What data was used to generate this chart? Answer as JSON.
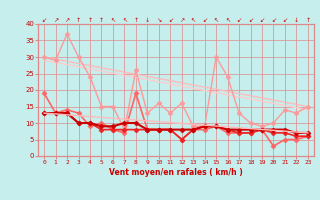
{
  "xlabel": "Vent moyen/en rafales ( km/h )",
  "bg_color": "#c5eeed",
  "grid_color": "#e08888",
  "xlim": [
    -0.5,
    23.5
  ],
  "ylim": [
    0,
    40
  ],
  "yticks": [
    0,
    5,
    10,
    15,
    20,
    25,
    30,
    35,
    40
  ],
  "xticks": [
    0,
    1,
    2,
    3,
    4,
    5,
    6,
    7,
    8,
    9,
    10,
    11,
    12,
    13,
    14,
    15,
    16,
    17,
    18,
    19,
    20,
    21,
    22,
    23
  ],
  "lines": [
    {
      "x": [
        0,
        23
      ],
      "y": [
        30,
        15
      ],
      "color": "#ffbbbb",
      "lw": 1.0,
      "marker": null,
      "ms": 0
    },
    {
      "x": [
        0,
        23
      ],
      "y": [
        29,
        14
      ],
      "color": "#ffcccc",
      "lw": 1.0,
      "marker": null,
      "ms": 0
    },
    {
      "x": [
        0,
        1,
        2,
        3,
        4,
        5,
        6,
        7,
        8,
        9,
        10,
        11,
        12,
        13,
        14,
        15,
        16,
        17,
        18,
        19,
        20,
        21,
        22,
        23
      ],
      "y": [
        30,
        29,
        37,
        30,
        24,
        15,
        15,
        8,
        26,
        13,
        16,
        13,
        16,
        9,
        9,
        30,
        24,
        13,
        10,
        9,
        10,
        14,
        13,
        15
      ],
      "color": "#ff9999",
      "lw": 1.0,
      "marker": "D",
      "ms": 2.5
    },
    {
      "x": [
        0,
        1,
        2,
        3,
        4,
        5,
        6,
        7,
        8,
        9,
        10,
        11,
        12,
        13,
        14,
        15,
        16,
        17,
        18,
        19,
        20,
        21,
        22,
        23
      ],
      "y": [
        19,
        13,
        14,
        13,
        9,
        10,
        8,
        7,
        19,
        8,
        8,
        8,
        5,
        8,
        8,
        9,
        7,
        7,
        7,
        8,
        3,
        5,
        5,
        6
      ],
      "color": "#ff6666",
      "lw": 1.2,
      "marker": "D",
      "ms": 2.5
    },
    {
      "x": [
        0,
        1,
        2,
        3,
        4,
        5,
        6,
        7,
        8,
        9,
        10,
        11,
        12,
        13,
        14,
        15,
        16,
        17,
        18,
        19,
        20,
        21,
        22,
        23
      ],
      "y": [
        13,
        13,
        13,
        10,
        10,
        8,
        8,
        8,
        8,
        8,
        8,
        8,
        5,
        8,
        9,
        9,
        8,
        7,
        7,
        8,
        7,
        7,
        6,
        6
      ],
      "color": "#ee2222",
      "lw": 1.2,
      "marker": "D",
      "ms": 2.5
    },
    {
      "x": [
        0,
        1,
        2,
        3,
        4,
        5,
        6,
        7,
        8,
        9,
        10,
        11,
        12,
        13,
        14,
        15,
        16,
        17,
        18,
        19,
        20,
        21,
        22,
        23
      ],
      "y": [
        13,
        13,
        13,
        10,
        10,
        9,
        9,
        10,
        10,
        8,
        8,
        8,
        8,
        8,
        9,
        9,
        8,
        8,
        8,
        8,
        8,
        8,
        7,
        7
      ],
      "color": "#cc0000",
      "lw": 1.5,
      "marker": "D",
      "ms": 2.5
    },
    {
      "x": [
        0,
        23
      ],
      "y": [
        13,
        7
      ],
      "color": "#ffbbbb",
      "lw": 1.0,
      "marker": null,
      "ms": 0
    }
  ],
  "wind_symbols": [
    "↙",
    "↗",
    "↗",
    "↑",
    "↑",
    "↑",
    "↖",
    "↖",
    "↑",
    "↓",
    "↘",
    "↙",
    "↗",
    "↖",
    "↙",
    "↖",
    "↖",
    "↙",
    "↙",
    "↙",
    "↙",
    "↙",
    "↓",
    "↑"
  ],
  "axis_label_color": "#cc0000",
  "tick_label_color": "#cc0000"
}
